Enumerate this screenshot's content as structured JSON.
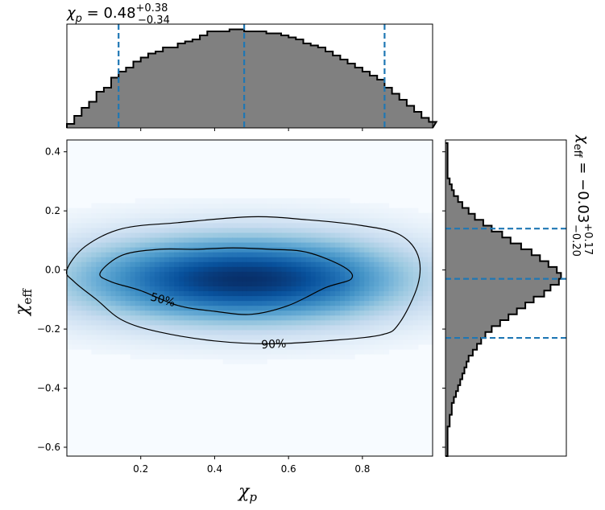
{
  "chart_data": {
    "type": "heatmap",
    "title_top": {
      "base": "χ",
      "sub": "p",
      "eq": " = 0.48",
      "sup": "+0.38",
      "low": "−0.34"
    },
    "title_right": {
      "base": "χ",
      "sub": "eff",
      "eq": " = −0.03",
      "sup": "+0.17",
      "low": "−0.20"
    },
    "xlabel": {
      "base": "χ",
      "sub": "p"
    },
    "ylabel": {
      "base": "χ",
      "sub": "eff"
    },
    "xlim": [
      0.0,
      0.99
    ],
    "ylim": [
      -0.63,
      0.44
    ],
    "xticks": [
      "0.2",
      "0.4",
      "0.6",
      "0.8"
    ],
    "xtick_values": [
      0.2,
      0.4,
      0.6,
      0.8
    ],
    "yticks": [
      "0.4",
      "0.2",
      "0.0",
      "−0.2",
      "−0.4",
      "−0.6"
    ],
    "ytick_values": [
      0.4,
      0.2,
      0.0,
      -0.2,
      -0.4,
      -0.6
    ],
    "chi_p_quantiles": [
      0.14,
      0.48,
      0.86
    ],
    "chi_eff_quantiles": [
      -0.23,
      -0.03,
      0.14
    ],
    "contour_labels": [
      {
        "text": "50%",
        "x": 0.26,
        "y": -0.1
      },
      {
        "text": "90%",
        "x": 0.56,
        "y": -0.25
      }
    ],
    "contour_50": [
      [
        0.09,
        -0.01
      ],
      [
        0.15,
        0.05
      ],
      [
        0.25,
        0.07
      ],
      [
        0.35,
        0.07
      ],
      [
        0.45,
        0.075
      ],
      [
        0.55,
        0.07
      ],
      [
        0.65,
        0.06
      ],
      [
        0.75,
        0.01
      ],
      [
        0.77,
        -0.03
      ],
      [
        0.7,
        -0.06
      ],
      [
        0.6,
        -0.12
      ],
      [
        0.5,
        -0.15
      ],
      [
        0.4,
        -0.14
      ],
      [
        0.3,
        -0.12
      ],
      [
        0.2,
        -0.07
      ],
      [
        0.12,
        -0.04
      ]
    ],
    "contour_90": [
      [
        0.0,
        0.0
      ],
      [
        0.05,
        0.08
      ],
      [
        0.15,
        0.14
      ],
      [
        0.3,
        0.16
      ],
      [
        0.5,
        0.18
      ],
      [
        0.65,
        0.17
      ],
      [
        0.8,
        0.15
      ],
      [
        0.9,
        0.12
      ],
      [
        0.95,
        0.05
      ],
      [
        0.95,
        -0.05
      ],
      [
        0.9,
        -0.18
      ],
      [
        0.85,
        -0.22
      ],
      [
        0.7,
        -0.24
      ],
      [
        0.55,
        -0.25
      ],
      [
        0.4,
        -0.24
      ],
      [
        0.25,
        -0.21
      ],
      [
        0.15,
        -0.17
      ],
      [
        0.08,
        -0.1
      ],
      [
        0.02,
        -0.04
      ]
    ],
    "hist_x": {
      "bin_width": 0.02,
      "bins_start": 0.0,
      "counts": [
        2,
        6,
        10,
        13,
        18,
        20,
        25,
        28,
        30,
        33,
        35,
        37,
        38,
        40,
        40,
        42,
        43,
        44,
        46,
        48,
        48,
        48,
        49,
        49,
        48,
        48,
        48,
        47,
        47,
        46,
        45,
        44,
        42,
        41,
        40,
        38,
        36,
        34,
        32,
        30,
        28,
        26,
        24,
        20,
        17,
        14,
        11,
        8,
        5,
        3
      ],
      "max": 50
    },
    "hist_y": {
      "bin_width": 0.02,
      "bins_start": -0.63,
      "counts": [
        1,
        1,
        1,
        1,
        1,
        2,
        2,
        3,
        3,
        4,
        5,
        6,
        7,
        8,
        9,
        10,
        11,
        13,
        15,
        17,
        19,
        22,
        26,
        30,
        34,
        38,
        42,
        47,
        50,
        54,
        55,
        53,
        49,
        45,
        41,
        36,
        31,
        27,
        22,
        18,
        14,
        11,
        8,
        6,
        4,
        3,
        2,
        1,
        1,
        1,
        1,
        1,
        1
      ],
      "max": 56
    }
  }
}
